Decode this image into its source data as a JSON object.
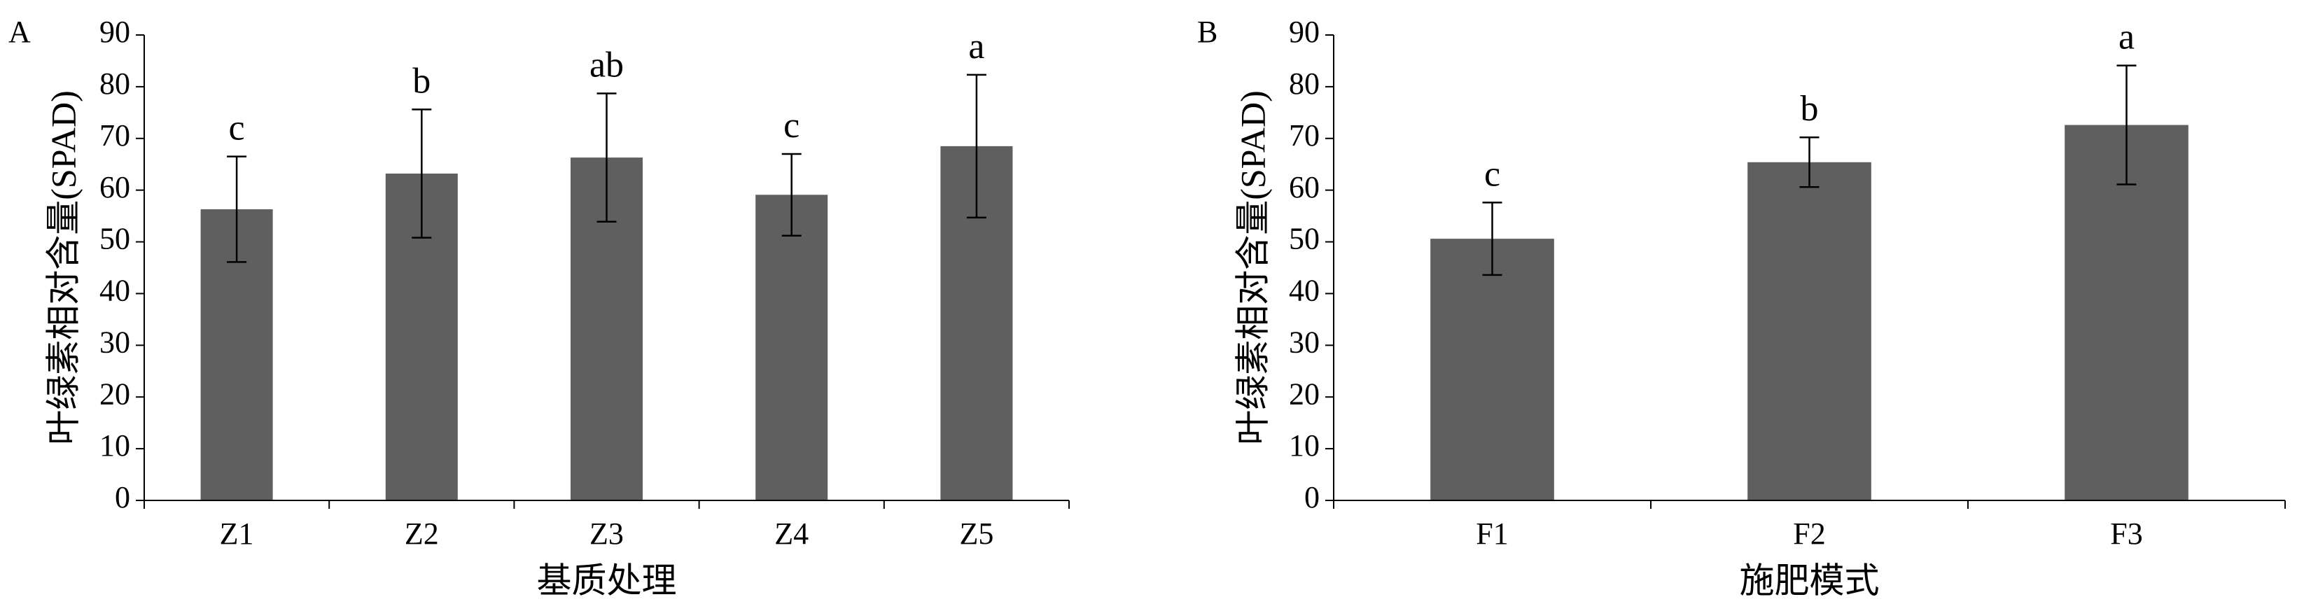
{
  "chart_data": [
    {
      "type": "bar",
      "panel_label": "A",
      "y_label": "叶绿素相对含量(SPAD)",
      "x_label": "基质处理",
      "categories": [
        "Z1",
        "Z2",
        "Z3",
        "Z4",
        "Z5"
      ],
      "values": [
        56.3,
        63.2,
        66.3,
        59.1,
        68.5
      ],
      "errors": [
        10.2,
        12.4,
        12.4,
        7.9,
        13.8
      ],
      "significance_letters": [
        "c",
        "b",
        "ab",
        "c",
        "a"
      ],
      "color": "#5f5f5f",
      "ylim": [
        0,
        90
      ],
      "yticks": [
        0,
        10,
        20,
        30,
        40,
        50,
        60,
        70,
        80,
        90
      ]
    },
    {
      "type": "bar",
      "panel_label": "B",
      "y_label": "叶绿素相对含量(SPAD)",
      "x_label": "施肥模式",
      "categories": [
        "F1",
        "F2",
        "F3"
      ],
      "values": [
        50.6,
        65.4,
        72.6
      ],
      "errors": [
        7.0,
        4.8,
        11.5
      ],
      "significance_letters": [
        "c",
        "b",
        "a"
      ],
      "color": "#5f5f5f",
      "ylim": [
        0,
        90
      ],
      "yticks": [
        0,
        10,
        20,
        30,
        40,
        50,
        60,
        70,
        80,
        90
      ]
    }
  ]
}
